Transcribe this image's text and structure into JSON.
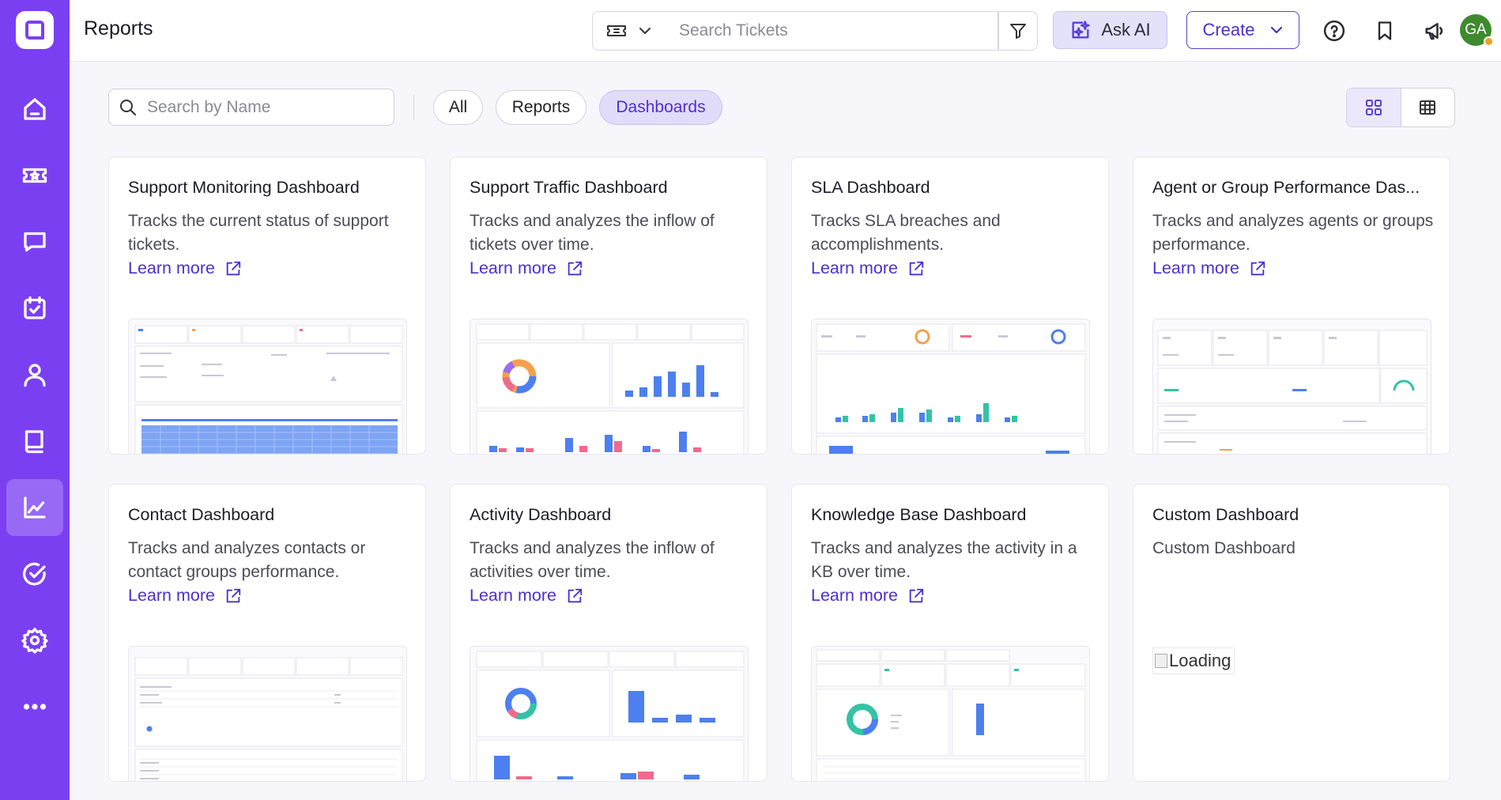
{
  "app": {
    "page_title": "Reports",
    "user_initials": "GA"
  },
  "header": {
    "search_placeholder": "Search Tickets",
    "ask_ai_label": "Ask AI",
    "create_label": "Create"
  },
  "toolbar": {
    "search_placeholder": "Search by Name",
    "filters": [
      "All",
      "Reports",
      "Dashboards"
    ],
    "selected_filter": "Dashboards",
    "view_modes": [
      "grid",
      "table"
    ],
    "selected_view": "grid"
  },
  "sidebar": {
    "items": [
      {
        "icon": "home-icon",
        "active": false
      },
      {
        "icon": "ticket-icon",
        "active": false
      },
      {
        "icon": "chat-icon",
        "active": false
      },
      {
        "icon": "calendar-check-icon",
        "active": false
      },
      {
        "icon": "user-icon",
        "active": false
      },
      {
        "icon": "book-icon",
        "active": false
      },
      {
        "icon": "chart-icon",
        "active": true
      },
      {
        "icon": "check-circle-icon",
        "active": false
      },
      {
        "icon": "gear-icon",
        "active": false
      },
      {
        "icon": "more-icon",
        "active": false
      }
    ]
  },
  "cards": [
    {
      "title": "Support Monitoring Dashboard",
      "description": "Tracks the current status of support tickets.",
      "link": "Learn more",
      "preview": "table"
    },
    {
      "title": "Support Traffic Dashboard",
      "description": "Tracks and analyzes the inflow of tickets over time.",
      "link": "Learn more",
      "preview": "donut-bars"
    },
    {
      "title": "SLA Dashboard",
      "description": "Tracks SLA breaches and accomplishments.",
      "link": "Learn more",
      "preview": "sla"
    },
    {
      "title": "Agent or Group Performance Das...",
      "description": "Tracks and analyzes agents or groups performance.",
      "link": "Learn more",
      "preview": "agent"
    },
    {
      "title": "Contact Dashboard",
      "description": "Tracks and analyzes contacts or contact groups performance.",
      "link": "Learn more",
      "preview": "contact"
    },
    {
      "title": "Activity Dashboard",
      "description": "Tracks and analyzes the inflow of activities over time.",
      "link": "Learn more",
      "preview": "activity"
    },
    {
      "title": "Knowledge Base Dashboard",
      "description": "Tracks and analyzes the activity in a KB over time.",
      "link": "Learn more",
      "preview": "kb"
    },
    {
      "title": "Custom Dashboard",
      "description": "Custom Dashboard",
      "link": "",
      "preview": "loading",
      "image_alt": "Loading"
    }
  ],
  "colors": {
    "sidebar": "#7b3ff2",
    "accent": "#4d2fcf",
    "chart_blue": "#4d7ff0",
    "chart_pink": "#ef6b8c",
    "chart_teal": "#34c2a6",
    "chart_orange": "#f6a04d"
  }
}
